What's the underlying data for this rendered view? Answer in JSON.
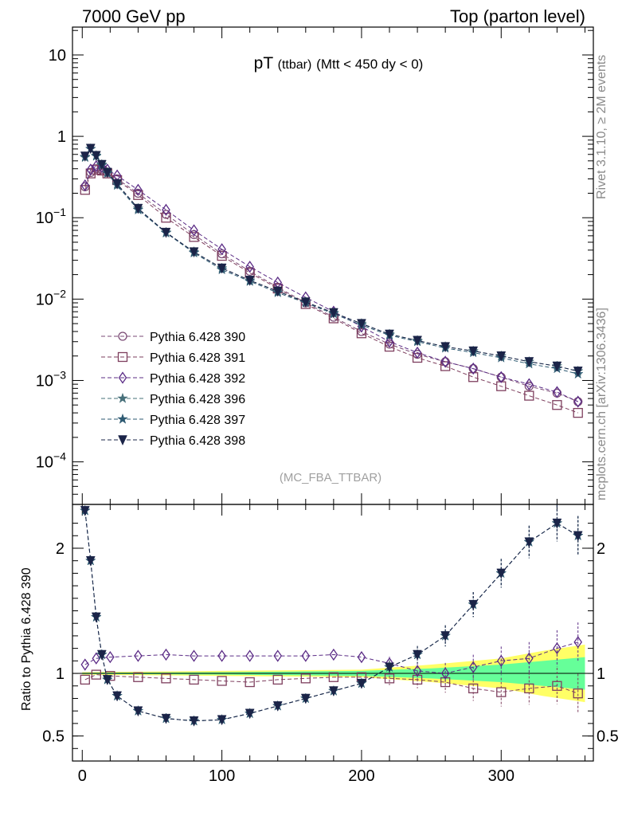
{
  "header": {
    "left": "7000 GeV pp",
    "right": "Top (parton level)",
    "side_top": "Rivet 3.1.10, ≥ 2M events",
    "side_bottom": "mcplots.cern.ch [arXiv:1306.3436]",
    "analysis_tag": "(MC_FBA_TTBAR)"
  },
  "title_parts": {
    "main": "pT",
    "sub": "(ttbar)",
    "cut": "(Mtt < 450 dy < 0)"
  },
  "colors": {
    "s390": "#7a4a74",
    "s391": "#7e3f5e",
    "s392": "#5b2c86",
    "s396": "#47707a",
    "s397": "#2e5a72",
    "s398": "#1b2448",
    "band_yellow": "#ffff66",
    "band_green": "#66ff99"
  },
  "chart_data": [
    {
      "type": "scatter",
      "scale": "log",
      "ylim": [
        3e-05,
        22
      ],
      "xlim": [
        -7,
        366
      ],
      "ytick_labels": [
        "10",
        "1",
        "10−1",
        "10−2",
        "10−3",
        "10−4"
      ],
      "legend_placement": "middle-left",
      "series": [
        {
          "name": "Pythia 6.428 390",
          "marker": "circle",
          "x": [
            2,
            6,
            10,
            14,
            18,
            25,
            40,
            60,
            80,
            100,
            120,
            140,
            160,
            180,
            200,
            220,
            240,
            260,
            280,
            300,
            320,
            340,
            355
          ],
          "y": [
            0.24,
            0.36,
            0.4,
            0.39,
            0.36,
            0.3,
            0.2,
            0.11,
            0.062,
            0.036,
            0.022,
            0.014,
            0.009,
            0.006,
            0.004,
            0.0028,
            0.0021,
            0.0017,
            0.0014,
            0.0011,
            0.00085,
            0.0007,
            0.00055
          ]
        },
        {
          "name": "Pythia 6.428 391",
          "marker": "square",
          "x": [
            2,
            6,
            10,
            14,
            18,
            25,
            40,
            60,
            80,
            100,
            120,
            140,
            160,
            180,
            200,
            220,
            240,
            260,
            280,
            300,
            320,
            340,
            355
          ],
          "y": [
            0.22,
            0.35,
            0.39,
            0.38,
            0.35,
            0.29,
            0.19,
            0.1,
            0.058,
            0.034,
            0.021,
            0.0135,
            0.0087,
            0.0058,
            0.0038,
            0.0026,
            0.0019,
            0.0015,
            0.0011,
            0.00085,
            0.00065,
            0.0005,
            0.0004
          ]
        },
        {
          "name": "Pythia 6.428 392",
          "marker": "diamond",
          "x": [
            2,
            6,
            10,
            14,
            18,
            25,
            40,
            60,
            80,
            100,
            120,
            140,
            160,
            180,
            200,
            220,
            240,
            260,
            280,
            300,
            320,
            340,
            355
          ],
          "y": [
            0.25,
            0.39,
            0.43,
            0.42,
            0.39,
            0.33,
            0.22,
            0.125,
            0.07,
            0.041,
            0.025,
            0.016,
            0.0105,
            0.007,
            0.0046,
            0.003,
            0.0022,
            0.0017,
            0.0014,
            0.0011,
            0.0009,
            0.00072,
            0.00055
          ]
        },
        {
          "name": "Pythia 6.428 396",
          "marker": "star",
          "x": [
            2,
            6,
            10,
            14,
            18,
            25,
            40,
            60,
            80,
            100,
            120,
            140,
            160,
            180,
            200,
            220,
            240,
            260,
            280,
            300,
            320,
            340,
            355
          ],
          "y": [
            0.55,
            0.7,
            0.58,
            0.45,
            0.36,
            0.26,
            0.13,
            0.066,
            0.038,
            0.024,
            0.017,
            0.0125,
            0.0092,
            0.0068,
            0.005,
            0.0037,
            0.0031,
            0.0026,
            0.0023,
            0.002,
            0.0017,
            0.0015,
            0.0013
          ]
        },
        {
          "name": "Pythia 6.428 397",
          "marker": "star",
          "x": [
            2,
            6,
            10,
            14,
            18,
            25,
            40,
            60,
            80,
            100,
            120,
            140,
            160,
            180,
            200,
            220,
            240,
            260,
            280,
            300,
            320,
            340,
            355
          ],
          "y": [
            0.56,
            0.7,
            0.57,
            0.44,
            0.35,
            0.25,
            0.125,
            0.065,
            0.037,
            0.023,
            0.0165,
            0.012,
            0.009,
            0.0066,
            0.0048,
            0.0036,
            0.003,
            0.0025,
            0.0022,
            0.0019,
            0.0016,
            0.0014,
            0.0012
          ]
        },
        {
          "name": "Pythia 6.428 398",
          "marker": "triangle-down",
          "x": [
            2,
            6,
            10,
            14,
            18,
            25,
            40,
            60,
            80,
            100,
            120,
            140,
            160,
            180,
            200,
            220,
            240,
            260,
            280,
            300,
            320,
            340,
            355
          ],
          "y": [
            0.57,
            0.71,
            0.58,
            0.45,
            0.36,
            0.26,
            0.13,
            0.066,
            0.038,
            0.024,
            0.017,
            0.0125,
            0.0092,
            0.0068,
            0.005,
            0.0037,
            0.0031,
            0.0026,
            0.0023,
            0.002,
            0.0017,
            0.0015,
            0.0013
          ]
        }
      ]
    },
    {
      "type": "scatter",
      "ylabel": "Ratio to Pythia 6.428 390",
      "ylim": [
        0.3,
        2.35
      ],
      "xlim": [
        -7,
        366
      ],
      "xtick_labels": [
        "0",
        "100",
        "200",
        "300"
      ],
      "ytick_labels": [
        "0.5",
        "1",
        "2"
      ],
      "reference_band": {
        "x": [
          0,
          50,
          100,
          150,
          200,
          250,
          300,
          330,
          360
        ],
        "yellow_lo": [
          0.99,
          0.985,
          0.98,
          0.975,
          0.97,
          0.93,
          0.88,
          0.82,
          0.77
        ],
        "yellow_hi": [
          1.01,
          1.015,
          1.02,
          1.025,
          1.03,
          1.07,
          1.12,
          1.18,
          1.23
        ],
        "green_lo": [
          0.995,
          0.993,
          0.99,
          0.985,
          0.98,
          0.96,
          0.93,
          0.9,
          0.87
        ],
        "green_hi": [
          1.005,
          1.007,
          1.01,
          1.015,
          1.02,
          1.04,
          1.07,
          1.1,
          1.13
        ]
      },
      "series": [
        {
          "name": "Pythia 6.428 391",
          "x": [
            2,
            10,
            20,
            40,
            60,
            80,
            100,
            120,
            140,
            160,
            180,
            200,
            220,
            240,
            260,
            280,
            300,
            320,
            340,
            355
          ],
          "y": [
            0.95,
            0.99,
            0.98,
            0.97,
            0.96,
            0.95,
            0.94,
            0.93,
            0.95,
            0.96,
            0.97,
            0.97,
            0.96,
            0.95,
            0.93,
            0.88,
            0.85,
            0.88,
            0.9,
            0.84
          ]
        },
        {
          "name": "Pythia 6.428 392",
          "x": [
            2,
            10,
            20,
            40,
            60,
            80,
            100,
            120,
            140,
            160,
            180,
            200,
            220,
            240,
            260,
            280,
            300,
            320,
            340,
            355
          ],
          "y": [
            1.07,
            1.12,
            1.13,
            1.14,
            1.15,
            1.14,
            1.14,
            1.14,
            1.14,
            1.14,
            1.15,
            1.13,
            1.08,
            1.02,
            1.0,
            1.05,
            1.1,
            1.12,
            1.2,
            1.25
          ]
        },
        {
          "name": "Pythia 6.428 396",
          "x": [
            2,
            6,
            10,
            14,
            18,
            25,
            40,
            60,
            80,
            100,
            120,
            140,
            160,
            180,
            200,
            220,
            240,
            260,
            280,
            300,
            320,
            340,
            355
          ],
          "y": [
            2.3,
            1.9,
            1.45,
            1.15,
            0.95,
            0.82,
            0.7,
            0.64,
            0.62,
            0.63,
            0.68,
            0.74,
            0.8,
            0.86,
            0.92,
            1.05,
            1.15,
            1.3,
            1.55,
            1.8,
            2.05,
            2.2,
            2.1
          ]
        },
        {
          "name": "Pythia 6.428 397",
          "x": [
            2,
            6,
            10,
            14,
            18,
            25,
            40,
            60,
            80,
            100,
            120,
            140,
            160,
            180,
            200,
            220,
            240,
            260,
            280,
            300,
            320,
            340,
            355
          ],
          "y": [
            2.3,
            1.9,
            1.45,
            1.15,
            0.95,
            0.82,
            0.7,
            0.64,
            0.62,
            0.63,
            0.68,
            0.74,
            0.8,
            0.86,
            0.92,
            1.05,
            1.15,
            1.3,
            1.55,
            1.8,
            2.05,
            2.2,
            2.1
          ]
        },
        {
          "name": "Pythia 6.428 398",
          "x": [
            2,
            6,
            10,
            14,
            18,
            25,
            40,
            60,
            80,
            100,
            120,
            140,
            160,
            180,
            200,
            220,
            240,
            260,
            280,
            300,
            320,
            340,
            355
          ],
          "y": [
            2.3,
            1.9,
            1.45,
            1.15,
            0.95,
            0.82,
            0.7,
            0.64,
            0.62,
            0.63,
            0.68,
            0.74,
            0.8,
            0.86,
            0.92,
            1.05,
            1.15,
            1.3,
            1.55,
            1.8,
            2.05,
            2.2,
            2.1
          ]
        }
      ]
    }
  ]
}
